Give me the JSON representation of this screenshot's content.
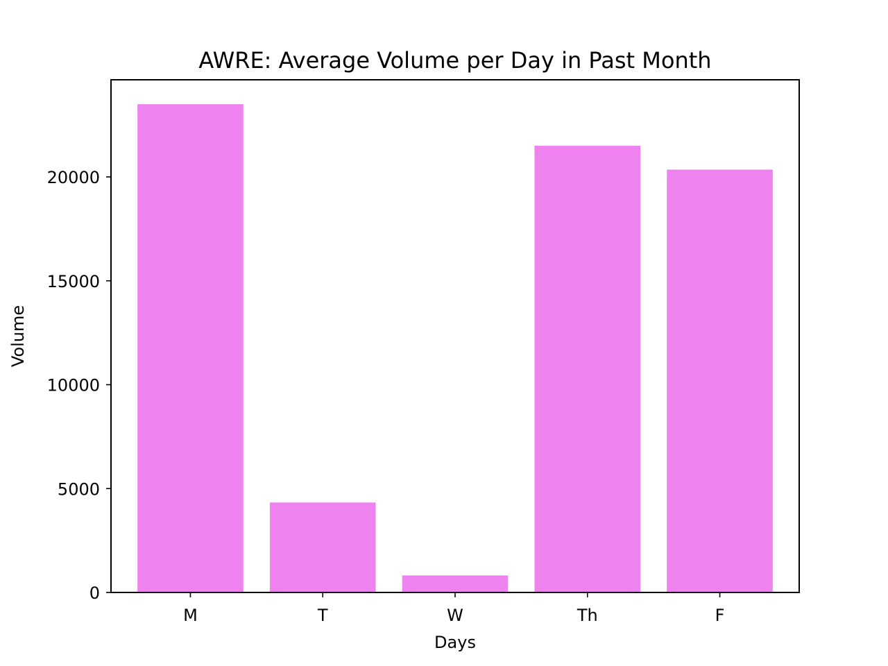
{
  "chart_data": {
    "type": "bar",
    "title": "AWRE: Average Volume per Day in Past Month",
    "xlabel": "Days",
    "ylabel": "Volume",
    "categories": [
      "M",
      "T",
      "W",
      "Th",
      "F"
    ],
    "values": [
      23500,
      4330,
      820,
      21500,
      20350
    ],
    "ylim": [
      0,
      24675
    ],
    "yticks": [
      0,
      5000,
      10000,
      15000,
      20000
    ],
    "ytick_labels": [
      "0",
      "5000",
      "10000",
      "15000",
      "20000"
    ],
    "bar_color": "#ee82ee",
    "grid": false,
    "legend": false
  }
}
